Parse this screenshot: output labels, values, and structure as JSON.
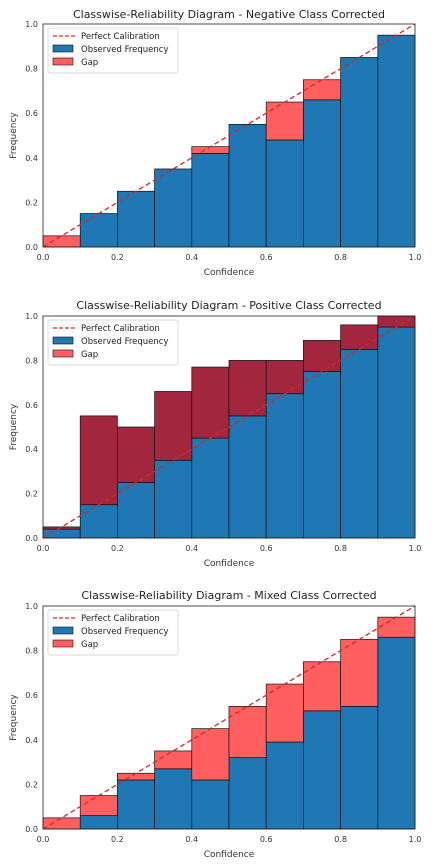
{
  "chart_data": [
    {
      "type": "bar",
      "title": "Classwise-Reliability Diagram - Negative Class Corrected",
      "xlabel": "Confidence",
      "ylabel": "Frequency",
      "xlim": [
        0,
        1
      ],
      "ylim": [
        0,
        1
      ],
      "xticks": [
        "0.0",
        "0.2",
        "0.4",
        "0.6",
        "0.8",
        "1.0"
      ],
      "yticks": [
        "0.0",
        "0.2",
        "0.4",
        "0.6",
        "0.8",
        "1.0"
      ],
      "bin_edges": [
        0,
        0.1,
        0.2,
        0.3,
        0.4,
        0.5,
        0.6,
        0.7,
        0.8,
        0.9,
        1.0
      ],
      "series": [
        {
          "name": "Observed Frequency",
          "values": [
            0.0,
            0.15,
            0.25,
            0.35,
            0.42,
            0.55,
            0.48,
            0.66,
            0.85,
            0.95
          ]
        }
      ],
      "perfect_calibration": [
        0.05,
        0.15,
        0.25,
        0.35,
        0.45,
        0.55,
        0.65,
        0.75,
        0.85,
        0.95
      ],
      "legend": {
        "placement": "top-left",
        "entries": [
          "Perfect Calibration",
          "Observed Frequency",
          "Gap"
        ]
      },
      "grid": false
    },
    {
      "type": "bar",
      "title": "Classwise-Reliability Diagram - Positive Class Corrected",
      "xlabel": "Confidence",
      "ylabel": "Frequency",
      "xlim": [
        0,
        1
      ],
      "ylim": [
        0,
        1
      ],
      "xticks": [
        "0.0",
        "0.2",
        "0.4",
        "0.6",
        "0.8",
        "1.0"
      ],
      "yticks": [
        "0.0",
        "0.2",
        "0.4",
        "0.6",
        "0.8",
        "1.0"
      ],
      "bin_edges": [
        0,
        0.1,
        0.2,
        0.3,
        0.4,
        0.5,
        0.6,
        0.7,
        0.8,
        0.9,
        1.0
      ],
      "series": [
        {
          "name": "Observed Frequency",
          "values": [
            0.04,
            0.15,
            0.25,
            0.35,
            0.45,
            0.55,
            0.65,
            0.75,
            0.85,
            0.95
          ]
        }
      ],
      "gap_top": [
        0.05,
        0.55,
        0.5,
        0.66,
        0.77,
        0.8,
        0.8,
        0.89,
        0.96,
        1.0
      ],
      "perfect_calibration": [
        0.05,
        0.15,
        0.25,
        0.35,
        0.45,
        0.55,
        0.65,
        0.75,
        0.85,
        0.95
      ],
      "legend": {
        "placement": "top-left",
        "entries": [
          "Perfect Calibration",
          "Observed Frequency",
          "Gap"
        ]
      },
      "grid": false
    },
    {
      "type": "bar",
      "title": "Classwise-Reliability Diagram - Mixed Class Corrected",
      "xlabel": "Confidence",
      "ylabel": "Frequency",
      "xlim": [
        0,
        1
      ],
      "ylim": [
        0,
        1
      ],
      "xticks": [
        "0.0",
        "0.2",
        "0.4",
        "0.6",
        "0.8",
        "1.0"
      ],
      "yticks": [
        "0.0",
        "0.2",
        "0.4",
        "0.6",
        "0.8",
        "1.0"
      ],
      "bin_edges": [
        0,
        0.1,
        0.2,
        0.3,
        0.4,
        0.5,
        0.6,
        0.7,
        0.8,
        0.9,
        1.0
      ],
      "series": [
        {
          "name": "Observed Frequency",
          "values": [
            0.0,
            0.06,
            0.22,
            0.27,
            0.22,
            0.32,
            0.39,
            0.53,
            0.55,
            0.86
          ]
        }
      ],
      "perfect_calibration": [
        0.05,
        0.15,
        0.25,
        0.35,
        0.45,
        0.55,
        0.65,
        0.75,
        0.85,
        0.95
      ],
      "legend": {
        "placement": "top-left",
        "entries": [
          "Perfect Calibration",
          "Observed Frequency",
          "Gap"
        ]
      },
      "grid": false
    }
  ],
  "colors": {
    "observed": "#1f77b4",
    "gap_under": "#ff5f5f",
    "gap_over": "#a3263f",
    "perfect": "#d62728",
    "edge": "#111111"
  }
}
